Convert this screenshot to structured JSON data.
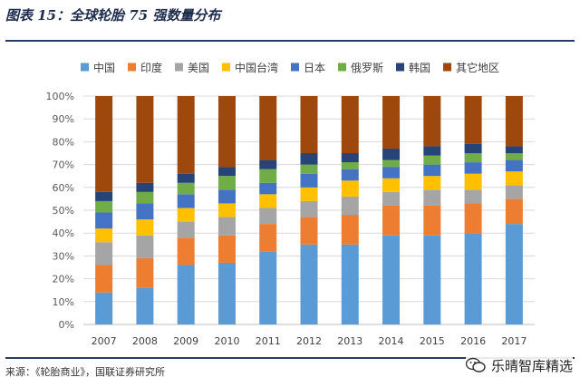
{
  "figure_title": "图表 15：全球轮胎 75 强数量分布",
  "source": "来源：《轮胎商业》，国联证券研究所",
  "watermark": "乐晴智库精选",
  "chart_data": {
    "type": "stacked-bar-100",
    "title": "",
    "xlabel": "",
    "ylabel": "",
    "ylim": [
      0,
      100
    ],
    "y_ticks": [
      "0%",
      "10%",
      "20%",
      "30%",
      "40%",
      "50%",
      "60%",
      "70%",
      "80%",
      "90%",
      "100%"
    ],
    "categories": [
      "2007",
      "2008",
      "2009",
      "2010",
      "2011",
      "2012",
      "2013",
      "2014",
      "2015",
      "2016",
      "2017"
    ],
    "legend_position": "top",
    "series": [
      {
        "name": "中国",
        "color": "#5b9bd5",
        "values": [
          14,
          16,
          26,
          27,
          32,
          35,
          35,
          39,
          39,
          40,
          44
        ]
      },
      {
        "name": "印度",
        "color": "#ed7d31",
        "values": [
          12,
          13,
          12,
          12,
          12,
          12,
          13,
          13,
          13,
          13,
          11
        ]
      },
      {
        "name": "美国",
        "color": "#a5a5a5",
        "values": [
          10,
          10,
          7,
          8,
          7,
          7,
          8,
          6,
          7,
          6,
          6
        ]
      },
      {
        "name": "中国台湾",
        "color": "#ffc000",
        "values": [
          6,
          7,
          6,
          6,
          6,
          6,
          7,
          6,
          6,
          7,
          6
        ]
      },
      {
        "name": "日本",
        "color": "#4472c4",
        "values": [
          7,
          7,
          6,
          6,
          5,
          6,
          5,
          5,
          5,
          5,
          5
        ]
      },
      {
        "name": "俄罗斯",
        "color": "#70ad47",
        "values": [
          5,
          5,
          5,
          6,
          6,
          4,
          3,
          3,
          4,
          4,
          3
        ]
      },
      {
        "name": "韩国",
        "color": "#264478",
        "values": [
          4,
          4,
          4,
          4,
          4,
          5,
          4,
          5,
          4,
          4,
          3
        ]
      },
      {
        "name": "其它地区",
        "color": "#9e480e",
        "values": [
          42,
          38,
          34,
          31,
          28,
          25,
          25,
          23,
          22,
          21,
          22
        ]
      }
    ]
  }
}
